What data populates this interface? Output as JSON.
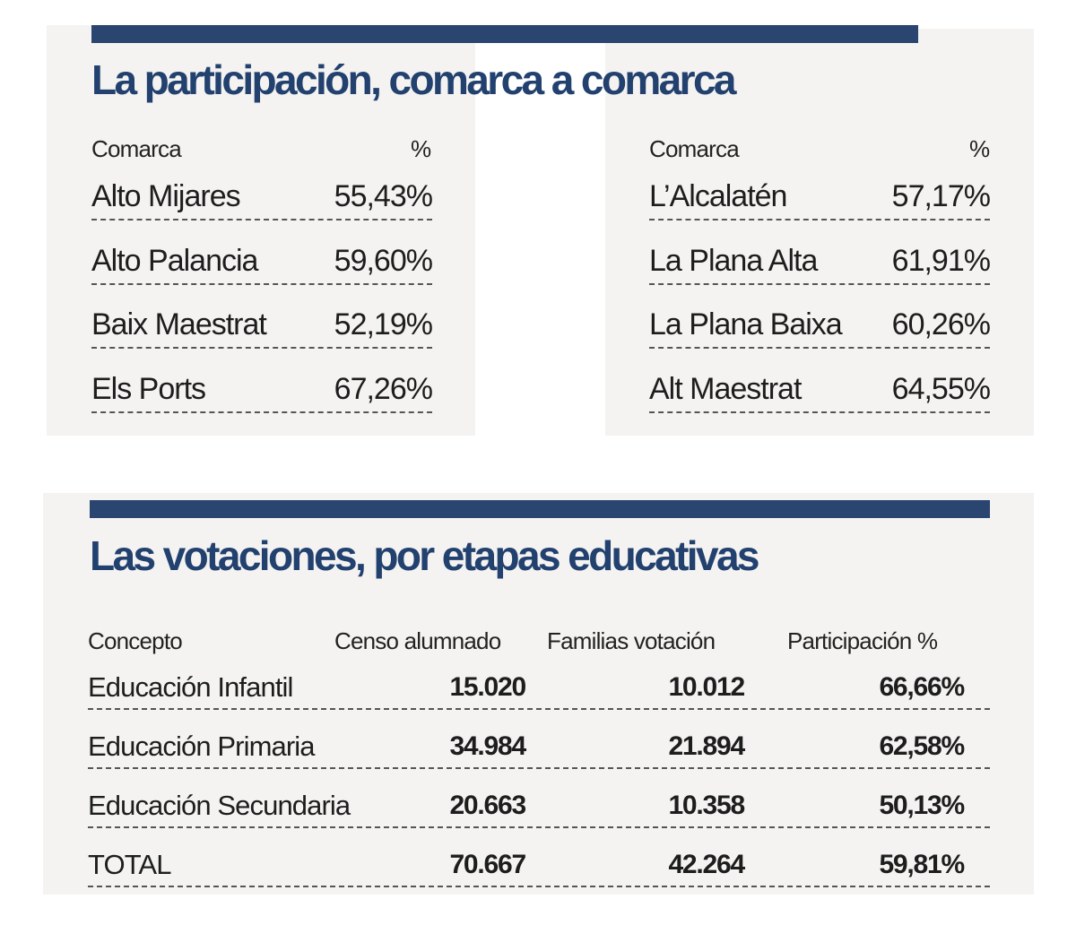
{
  "section1": {
    "title": "La participación, comarca a comarca",
    "col_label": "Comarca",
    "col_value": "%",
    "left_rows": [
      {
        "comarca": "Alto Mijares",
        "pct": "55,43%"
      },
      {
        "comarca": "Alto Palancia",
        "pct": "59,60%"
      },
      {
        "comarca": "Baix Maestrat",
        "pct": "52,19%"
      },
      {
        "comarca": "Els Ports",
        "pct": "67,26%"
      }
    ],
    "right_rows": [
      {
        "comarca": "L’Alcalatén",
        "pct": "57,17%"
      },
      {
        "comarca": "La Plana Alta",
        "pct": "61,91%"
      },
      {
        "comarca": "La Plana Baixa",
        "pct": "60,26%"
      },
      {
        "comarca": "Alt Maestrat",
        "pct": "64,55%"
      }
    ]
  },
  "section2": {
    "title": "Las votaciones, por etapas educativas",
    "headers": [
      "Concepto",
      "Censo alumnado",
      "Familias votación",
      "Participación %"
    ],
    "rows": [
      {
        "concepto": "Educación Infantil",
        "censo": "15.020",
        "familias": "10.012",
        "participacion": "66,66%"
      },
      {
        "concepto": "Educación Primaria",
        "censo": "34.984",
        "familias": "21.894",
        "participacion": "62,58%"
      },
      {
        "concepto": "Educación Secundaria",
        "censo": "20.663",
        "familias": "10.358",
        "participacion": "50,13%"
      },
      {
        "concepto": "TOTAL",
        "censo": "70.667",
        "familias": "42.264",
        "participacion": "59,81%"
      }
    ]
  },
  "colors": {
    "accent": "#2a4570",
    "title": "#22416f",
    "panel": "#f4f3f1"
  }
}
